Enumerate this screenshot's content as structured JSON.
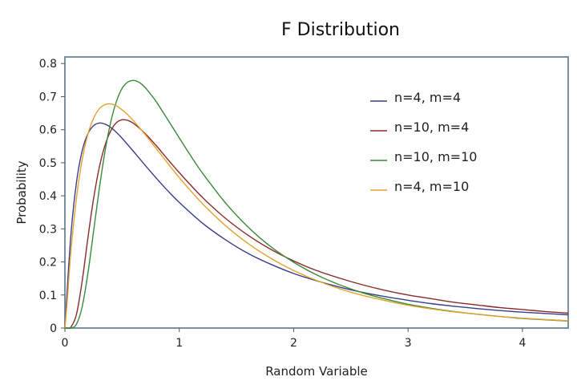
{
  "chart_data": {
    "type": "line",
    "title": "F Distribution",
    "xlabel": "Random Variable",
    "ylabel": "Probability",
    "xlim": [
      0,
      4.4
    ],
    "ylim": [
      0,
      0.82
    ],
    "xticks": [
      0,
      1,
      2,
      3,
      4
    ],
    "yticks": [
      0,
      0.1,
      0.2,
      0.3,
      0.4,
      0.5,
      0.6,
      0.7,
      0.8
    ],
    "grid": false,
    "legend_position": "top-right",
    "series": [
      {
        "name": "n=4, m=4",
        "color": "#3c3c8c",
        "x": [
          0.05,
          0.1,
          0.15,
          0.2,
          0.25,
          0.3,
          0.35,
          0.4,
          0.45,
          0.5,
          0.6,
          0.7,
          0.8,
          0.9,
          1.0,
          1.2,
          1.4,
          1.6,
          1.8,
          2.0,
          2.2,
          2.4,
          2.6,
          2.8,
          3.0,
          3.2,
          3.4,
          3.6,
          3.8,
          4.0,
          4.2,
          4.4
        ],
        "y": [
          0.272,
          0.438,
          0.535,
          0.587,
          0.612,
          0.62,
          0.617,
          0.607,
          0.592,
          0.574,
          0.534,
          0.493,
          0.453,
          0.415,
          0.38,
          0.318,
          0.268,
          0.226,
          0.193,
          0.165,
          0.143,
          0.124,
          0.108,
          0.095,
          0.084,
          0.074,
          0.066,
          0.059,
          0.053,
          0.048,
          0.044,
          0.04
        ]
      },
      {
        "name": "n=10, m=4",
        "color": "#8c2a2a",
        "x": [
          0.02,
          0.05,
          0.1,
          0.15,
          0.2,
          0.25,
          0.3,
          0.35,
          0.4,
          0.45,
          0.5,
          0.55,
          0.6,
          0.7,
          0.8,
          0.9,
          1.0,
          1.2,
          1.4,
          1.6,
          1.8,
          2.0,
          2.2,
          2.4,
          2.6,
          2.8,
          3.0,
          3.2,
          3.4,
          3.6,
          3.8,
          4.0,
          4.2,
          4.4
        ],
        "y": [
          0.0001,
          0.002,
          0.04,
          0.14,
          0.27,
          0.39,
          0.485,
          0.552,
          0.596,
          0.621,
          0.63,
          0.628,
          0.619,
          0.589,
          0.551,
          0.51,
          0.47,
          0.396,
          0.333,
          0.281,
          0.238,
          0.203,
          0.174,
          0.151,
          0.131,
          0.114,
          0.1,
          0.089,
          0.078,
          0.07,
          0.062,
          0.056,
          0.05,
          0.045
        ]
      },
      {
        "name": "n=10, m=10",
        "color": "#3a8a3a",
        "x": [
          0.02,
          0.05,
          0.1,
          0.15,
          0.2,
          0.25,
          0.3,
          0.35,
          0.4,
          0.45,
          0.5,
          0.55,
          0.6,
          0.65,
          0.7,
          0.75,
          0.8,
          0.9,
          1.0,
          1.1,
          1.2,
          1.4,
          1.6,
          1.8,
          2.0,
          2.2,
          2.4,
          2.6,
          2.8,
          3.0,
          3.2,
          3.4,
          3.6,
          3.8,
          4.0,
          4.2,
          4.4
        ],
        "y": [
          0.0,
          0.0002,
          0.011,
          0.063,
          0.163,
          0.291,
          0.42,
          0.533,
          0.622,
          0.685,
          0.725,
          0.744,
          0.749,
          0.743,
          0.728,
          0.707,
          0.684,
          0.63,
          0.575,
          0.521,
          0.47,
          0.38,
          0.306,
          0.246,
          0.199,
          0.161,
          0.131,
          0.107,
          0.088,
          0.072,
          0.06,
          0.05,
          0.042,
          0.035,
          0.029,
          0.025,
          0.021
        ]
      },
      {
        "name": "n=4, m=10",
        "color": "#e0a32e",
        "x": [
          0.02,
          0.05,
          0.1,
          0.15,
          0.2,
          0.25,
          0.3,
          0.35,
          0.4,
          0.45,
          0.5,
          0.55,
          0.6,
          0.7,
          0.8,
          0.9,
          1.0,
          1.2,
          1.4,
          1.6,
          1.8,
          2.0,
          2.2,
          2.4,
          2.6,
          2.8,
          3.0,
          3.2,
          3.4,
          3.6,
          3.8,
          4.0,
          4.2,
          4.4
        ],
        "y": [
          0.08,
          0.222,
          0.39,
          0.508,
          0.585,
          0.634,
          0.663,
          0.676,
          0.678,
          0.672,
          0.66,
          0.645,
          0.627,
          0.586,
          0.542,
          0.498,
          0.455,
          0.377,
          0.311,
          0.256,
          0.211,
          0.174,
          0.144,
          0.119,
          0.099,
          0.083,
          0.069,
          0.058,
          0.049,
          0.042,
          0.035,
          0.03,
          0.026,
          0.022
        ]
      }
    ]
  }
}
